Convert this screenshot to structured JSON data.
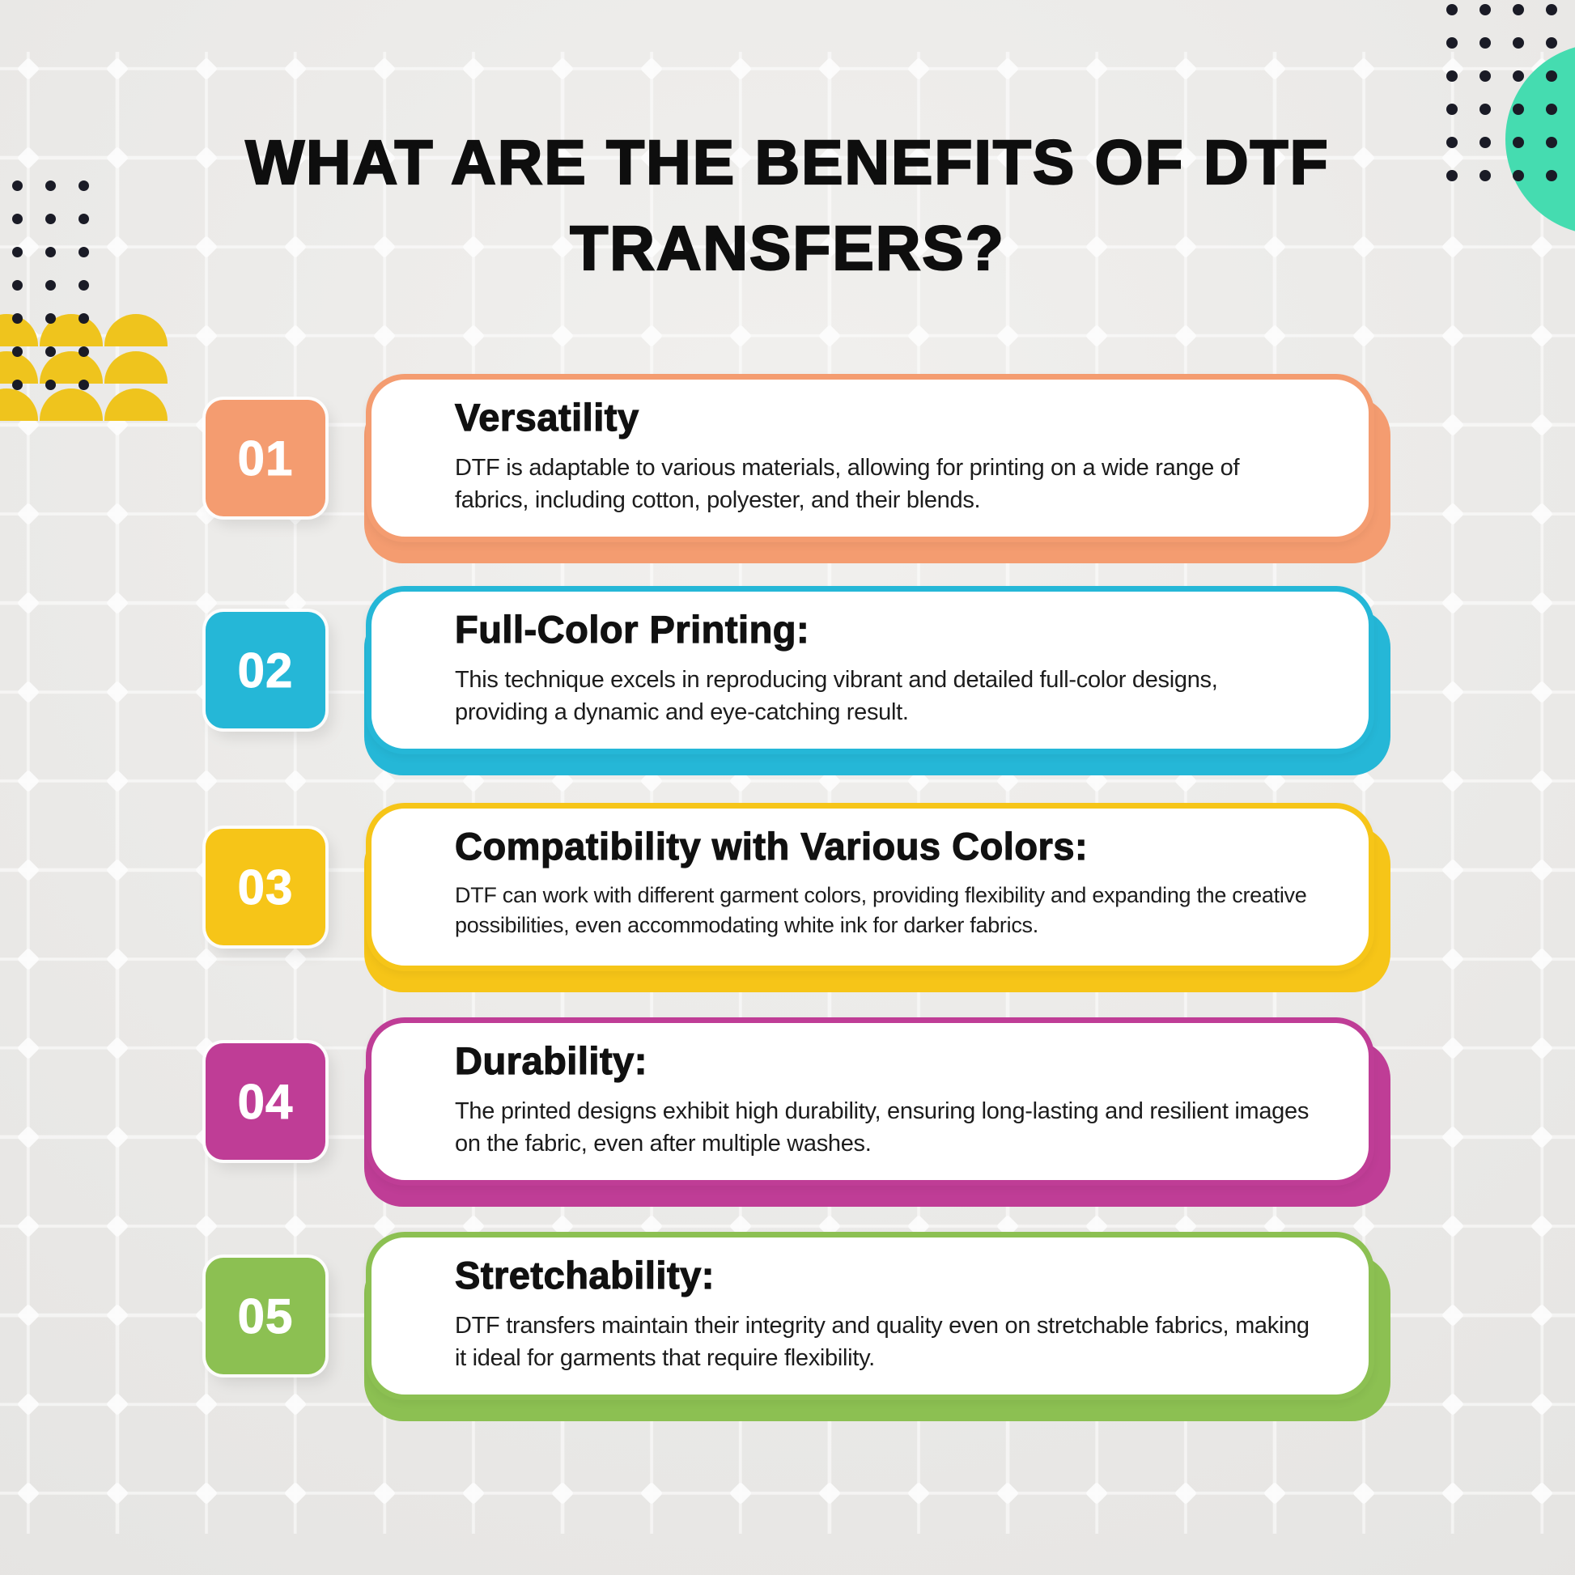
{
  "title": {
    "line1": "WHAT ARE THE BENEFITS OF DTF",
    "line2": "TRANSFERS?"
  },
  "cards": [
    {
      "number": "01",
      "heading": "Versatility",
      "body": "DTF is adaptable to various materials, allowing for printing on a wide range of fabrics, including cotton, polyester, and their blends.",
      "color": "#F49C70"
    },
    {
      "number": "02",
      "heading": "Full-Color Printing:",
      "body": "This technique excels in reproducing vibrant and detailed full-color designs, providing a dynamic and eye-catching result.",
      "color": "#25B7D7"
    },
    {
      "number": "03",
      "heading": "Compatibility with Various Colors:",
      "body": "DTF can work with different garment colors, providing flexibility and expanding the creative possibilities, even accommodating white ink for darker fabrics.",
      "color": "#F6C518"
    },
    {
      "number": "04",
      "heading": "Durability:",
      "body": "The printed designs exhibit high durability, ensuring long-lasting and resilient images on the fabric, even after multiple washes.",
      "color": "#BF3D96"
    },
    {
      "number": "05",
      "heading": "Stretchability:",
      "body": "DTF transfers maintain their integrity and quality even on stretchable fabrics, making it ideal for garments that require flexibility.",
      "color": "#8CC052"
    }
  ],
  "decor": {
    "dot_color": "#1A1B26",
    "teal_circle_color": "#45DCB0",
    "scallop_color": "#EFC41D",
    "grid_line_color": "#FFFFFF",
    "background_color": "#E9E8E6"
  }
}
